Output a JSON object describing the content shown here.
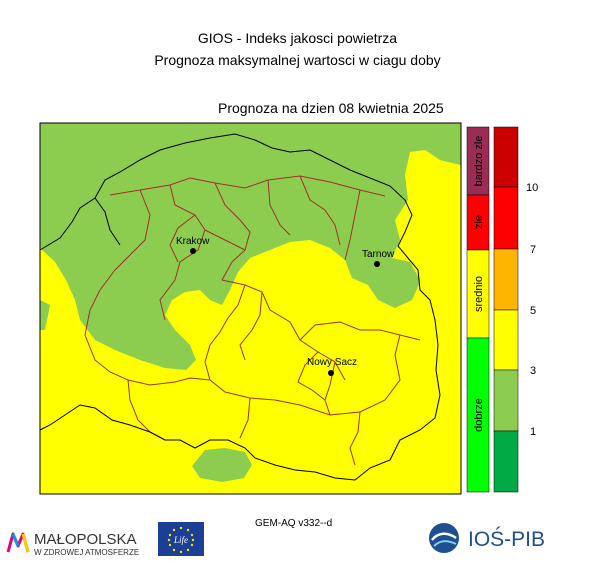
{
  "header": {
    "title_line1": "GIOS - Indeks jakosci powietrza",
    "title_line2": "Prognoza maksymalnej wartosci w ciagu doby",
    "forecast_date": "Prognoza na dzien  08 kwietnia 2025"
  },
  "cities": [
    {
      "name": "Krakow"
    },
    {
      "name": "Tarnow"
    },
    {
      "name": "Nowy Sacz"
    }
  ],
  "legend": {
    "categories": [
      {
        "label": "bardzo zle",
        "color": "#9b2d55"
      },
      {
        "label": "zle",
        "color": "#ff0000"
      },
      {
        "label": "srednio",
        "color": "#ffff00"
      },
      {
        "label": "dobrze",
        "color": "#00ff00"
      }
    ],
    "scale_colors": [
      "#cc0000",
      "#ff0000",
      "#ffb400",
      "#ffff00",
      "#8ccd50",
      "#00aa44"
    ],
    "scale_labels": [
      "10",
      "7",
      "5",
      "3",
      "1"
    ]
  },
  "map_colors": {
    "yellow": "#ffff00",
    "green": "#8ccd50",
    "district_border": "#a0302a",
    "region_border": "#000000"
  },
  "footer": {
    "model_label": "GEM-AQ v332--d",
    "malopolska_text": "MAŁOPOLSKA",
    "malopolska_subtext": "W ZDROWEJ ATMOSFERZE",
    "eu_text": "Life",
    "iospib_text": "IOŚ-PIB"
  }
}
